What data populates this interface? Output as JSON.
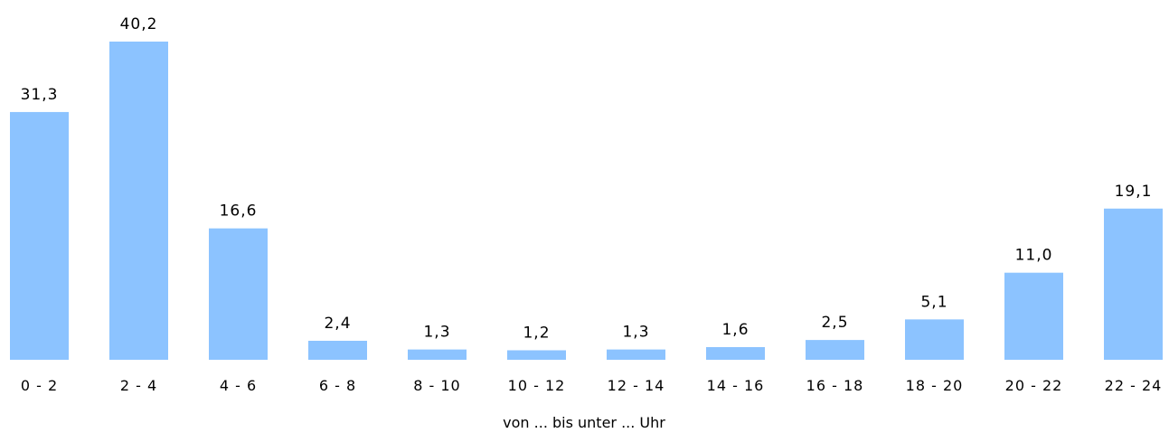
{
  "chart_data": {
    "type": "bar",
    "categories": [
      "0 - 2",
      "2 - 4",
      "4 - 6",
      "6 - 8",
      "8 - 10",
      "10 - 12",
      "12 - 14",
      "14 - 16",
      "16 - 18",
      "18 - 20",
      "20 - 22",
      "22 - 24"
    ],
    "values": [
      31.3,
      40.2,
      16.6,
      2.4,
      1.3,
      1.2,
      1.3,
      1.6,
      2.5,
      5.1,
      11.0,
      19.1
    ],
    "value_labels": [
      "31,3",
      "40,2",
      "16,6",
      "2,4",
      "1,3",
      "1,2",
      "1,3",
      "1,6",
      "2,5",
      "5,1",
      "11,0",
      "19,1"
    ],
    "xlabel": "von ... bis unter ... Uhr",
    "ylabel": "",
    "ylim": [
      0,
      40.2
    ],
    "grid": false,
    "bar_color": "#8cc3ff"
  }
}
